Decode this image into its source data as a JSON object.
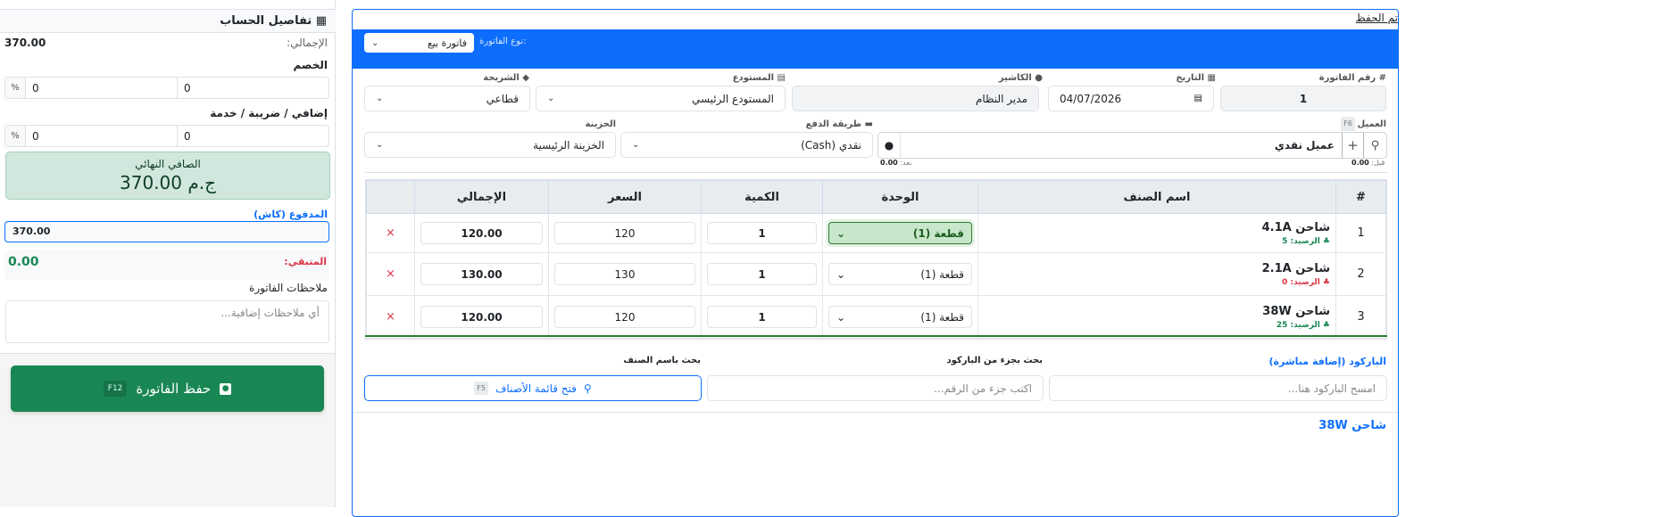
{
  "account": {
    "title": "تفاصيل الحساب",
    "total_label": "الإجمالي:",
    "total_value": "370.00",
    "discount_label": "الخصم",
    "discount_value": "0",
    "discount_pct": "0",
    "pct_symbol": "%",
    "extra_label": "إضافي / ضريبة / خدمة",
    "extra_value": "0",
    "extra_pct": "0",
    "net_label": "الصافي النهائي",
    "net_value": "370.00 ج.م",
    "paid_label": "المدفوع (كاش)",
    "paid_value": "370.00",
    "remaining_label": "المتبقي:",
    "remaining_value": "0.00",
    "notes_label": "ملاحظات الفاتورة",
    "notes_placeholder": "أي ملاحظات إضافية...",
    "save_label": "حفظ الفاتورة",
    "save_shortcut": "F12"
  },
  "status_text": "تم الحفظ",
  "invoice_type": {
    "label": "نوع الفاتورة:",
    "value": "فاتورة بيع"
  },
  "fields": {
    "invoice_no_label": "# رقم الفاتورة",
    "invoice_no": "1",
    "date_label": "التاريخ",
    "date": "04/07/2026",
    "cashier_label": "الكاشير",
    "cashier": "مدير النظام",
    "warehouse_label": "المستودع",
    "warehouse": "المستودع الرئيسي",
    "tier_label": "الشريحة",
    "tier": "قطاعي",
    "customer_label": "العميل",
    "customer_shortcut": "F6",
    "customer": "عميل نقدي",
    "before_label": "قبل:",
    "before_value": "0.00",
    "after_label": "بعد:",
    "after_value": "0.00",
    "payment_label": "طريقة الدفع",
    "payment": "نقدي (Cash)",
    "treasury_label": "الخزينة",
    "treasury": "الخزينة الرئيسية"
  },
  "table": {
    "headers": [
      "#",
      "اسم الصنف",
      "الوحدة",
      "الكمية",
      "السعر",
      "الإجمالي",
      ""
    ],
    "stock_label": "الرصيد:",
    "rows": [
      {
        "n": "1",
        "name": "شاحن 4.1A",
        "stock": "5",
        "stock_color": "#198754",
        "unit": "قطعة (1)",
        "qty": "1",
        "price": "120",
        "total": "120.00"
      },
      {
        "n": "2",
        "name": "شاحن 2.1A",
        "stock": "0",
        "stock_color": "#dc3545",
        "unit": "قطعة (1)",
        "qty": "1",
        "price": "130",
        "total": "130.00"
      },
      {
        "n": "3",
        "name": "شاحن 38W",
        "stock": "25",
        "stock_color": "#198754",
        "unit": "قطعة (1)",
        "qty": "1",
        "price": "120",
        "total": "120.00"
      }
    ]
  },
  "search": {
    "barcode_label": "الباركود (إضافة مباشرة)",
    "barcode_placeholder": "امسح الباركود هنا...",
    "partial_label": "بحث بجزء من الباركود",
    "partial_placeholder": "اكتب جزء من الرقم...",
    "name_label": "بحث باسم الصنف",
    "open_list": "فتح قائمة الأصناف",
    "open_list_shortcut": "F5"
  },
  "footer_item": "شاحن 38W",
  "colors": {
    "primary": "#0d6efd",
    "success": "#198754",
    "danger": "#dc3545"
  }
}
